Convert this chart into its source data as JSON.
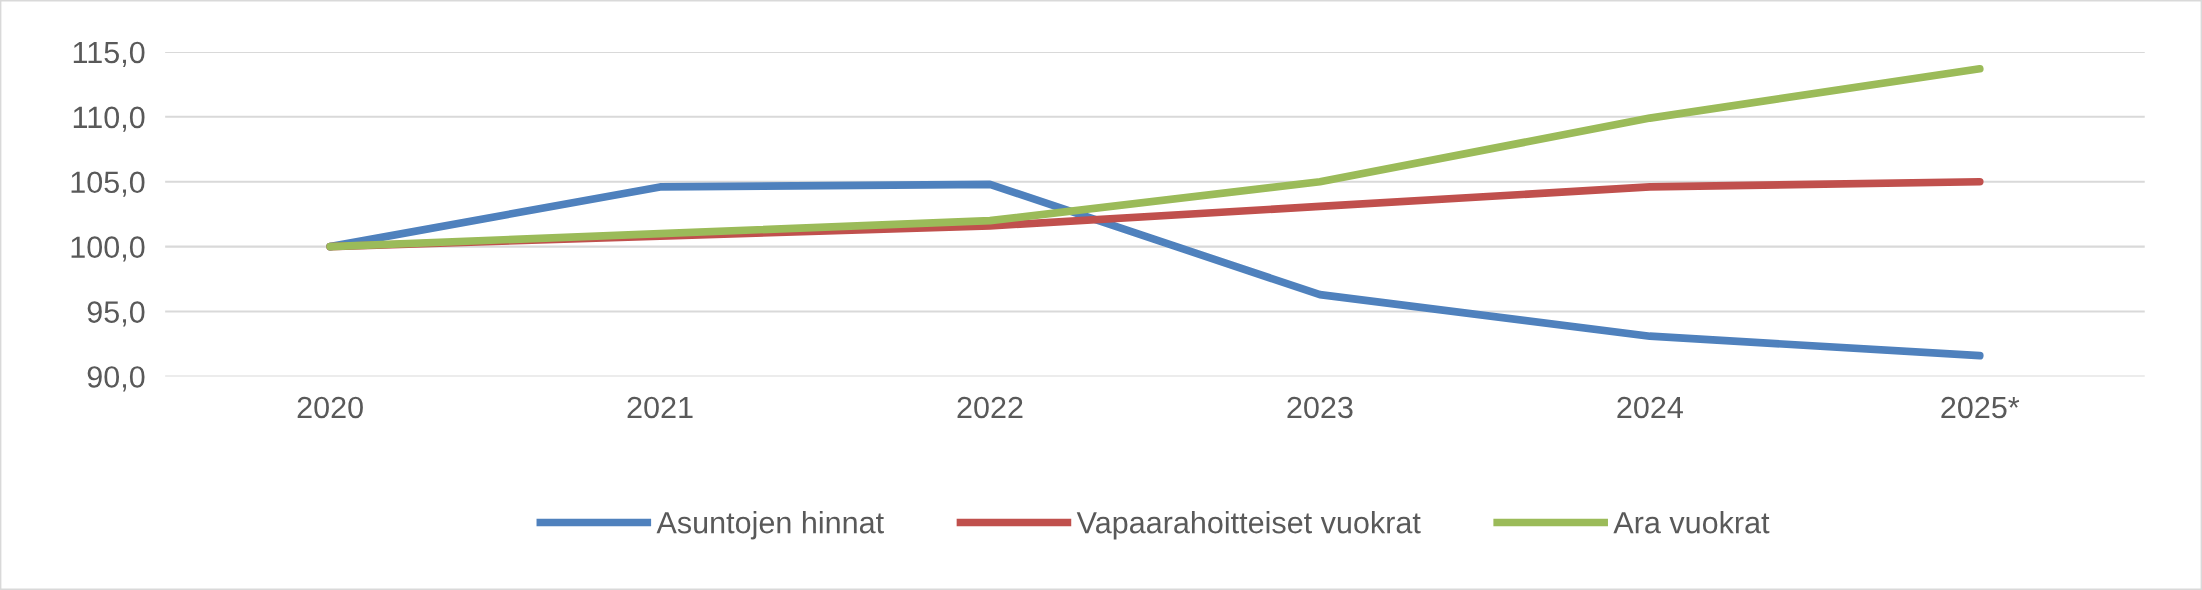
{
  "chart_data": {
    "type": "line",
    "categories": [
      "2020",
      "2021",
      "2022",
      "2023",
      "2024",
      "2025*"
    ],
    "series": [
      {
        "name": "Asuntojen hinnat",
        "color": "#4f81bd",
        "values": [
          100.0,
          104.6,
          104.8,
          96.3,
          93.1,
          91.6
        ]
      },
      {
        "name": "Vapaarahoitteiset vuokrat",
        "color": "#c0504d",
        "values": [
          100.0,
          100.8,
          101.6,
          103.1,
          104.6,
          105.0
        ]
      },
      {
        "name": "Ara vuokrat",
        "color": "#9bbb59",
        "values": [
          100.0,
          101.0,
          102.0,
          105.0,
          109.9,
          113.7
        ]
      }
    ],
    "ylim": [
      90,
      115
    ],
    "yticks": [
      {
        "value": 90,
        "label": "90,0"
      },
      {
        "value": 95,
        "label": "95,0"
      },
      {
        "value": 100,
        "label": "100,0"
      },
      {
        "value": 105,
        "label": "105,0"
      },
      {
        "value": 110,
        "label": "110,0"
      },
      {
        "value": 115,
        "label": "115,0"
      }
    ],
    "grid": "y",
    "legend": "bottom",
    "marker": "none",
    "line_style": "solid"
  }
}
